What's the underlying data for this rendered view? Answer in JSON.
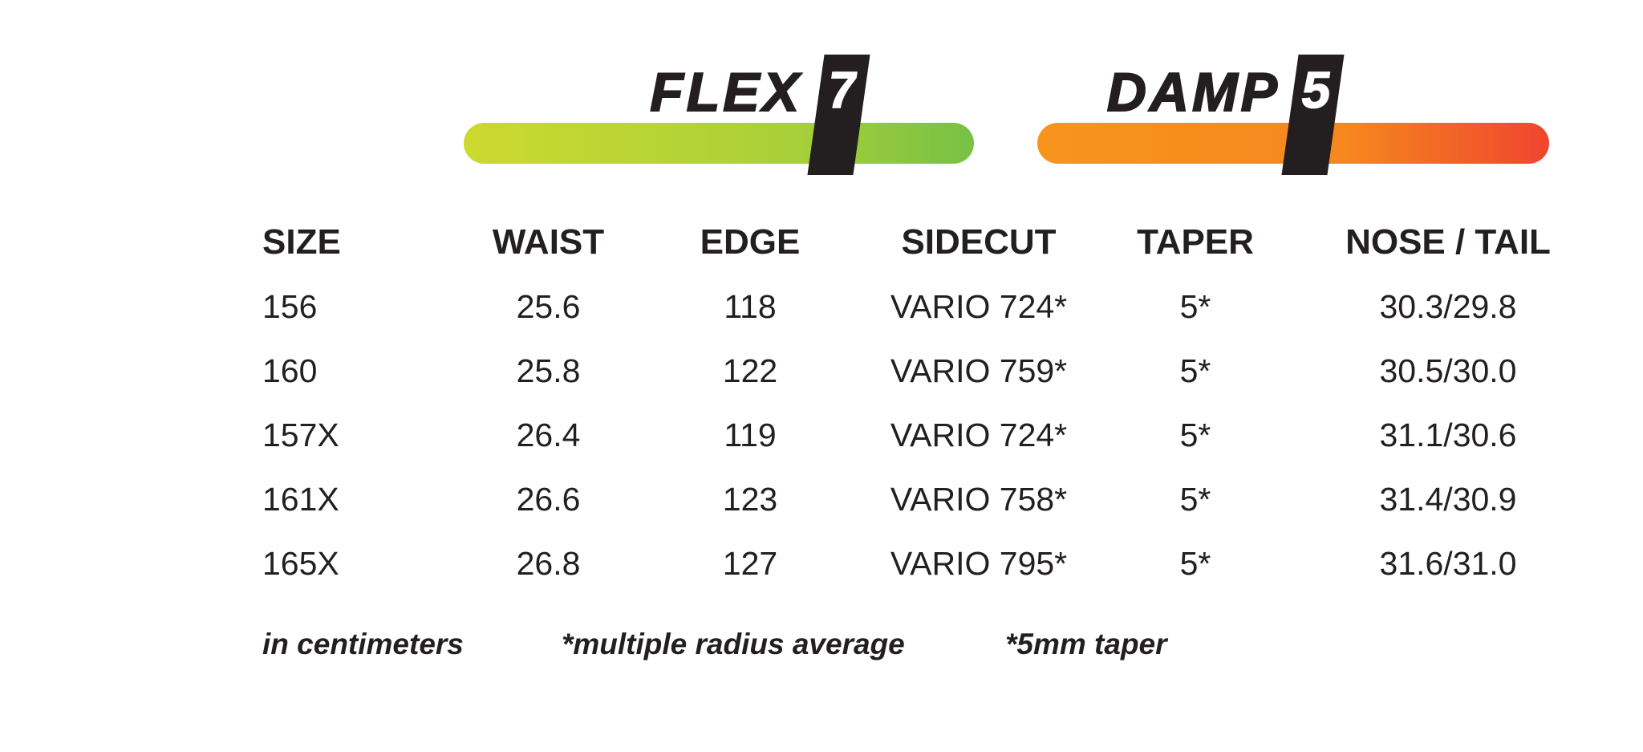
{
  "gauges": {
    "flex": {
      "label": "FLEX",
      "value": "7",
      "scale_max": 10,
      "bar_colors": [
        "#ccd930",
        "#a8d039",
        "#77c144"
      ]
    },
    "damp": {
      "label": "DAMP",
      "value": "5",
      "scale_max": 10,
      "bar_colors": [
        "#f7941e",
        "#f6881f",
        "#ef452f"
      ]
    }
  },
  "table": {
    "columns": [
      "SIZE",
      "WAIST",
      "EDGE",
      "SIDECUT",
      "TAPER",
      "NOSE / TAIL"
    ],
    "rows": [
      [
        "156",
        "25.6",
        "118",
        "VARIO 724*",
        "5*",
        "30.3/29.8"
      ],
      [
        "160",
        "25.8",
        "122",
        "VARIO 759*",
        "5*",
        "30.5/30.0"
      ],
      [
        "157X",
        "26.4",
        "119",
        "VARIO 724*",
        "5*",
        "31.1/30.6"
      ],
      [
        "161X",
        "26.6",
        "123",
        "VARIO 758*",
        "5*",
        "31.4/30.9"
      ],
      [
        "165X",
        "26.8",
        "127",
        "VARIO 795*",
        "5*",
        "31.6/31.0"
      ]
    ]
  },
  "notes": [
    "in centimeters",
    "*multiple radius average",
    "*5mm taper"
  ],
  "colors": {
    "text": "#231f20",
    "marker": "#231f20",
    "marker_value": "#ffffff",
    "background": "#ffffff"
  }
}
